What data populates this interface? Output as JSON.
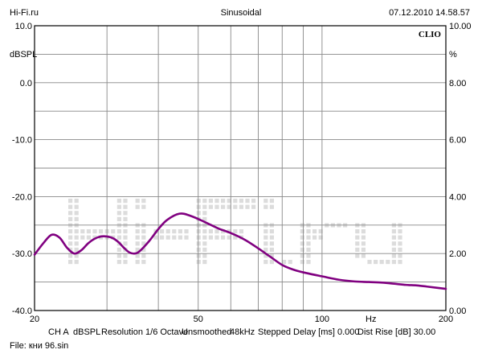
{
  "header": {
    "left": "Hi-Fi.ru",
    "center": "Sinusoidal",
    "right": "07.12.2010 14.58.57"
  },
  "chart_data": {
    "type": "line",
    "brand": "CLIO",
    "watermark": "Hi-Fi.ru",
    "x_scale": "log",
    "xlim": [
      20,
      200
    ],
    "ylim": [
      -40,
      10
    ],
    "grid": true,
    "x_ticks": [
      "20",
      "50",
      "100",
      "200"
    ],
    "x_unit": "Hz",
    "y_ticks_left": [
      "10.0",
      "0.0",
      "-10.0",
      "-20.0",
      "-30.0",
      "-40.0"
    ],
    "y_unit_left": "dBSPL",
    "y_ticks_right": [
      "10.00",
      "8.00",
      "6.00",
      "4.00",
      "2.00",
      "0.00"
    ],
    "y_unit_right": "%",
    "series": [
      {
        "color": "#800080",
        "x": [
          20,
          21,
          22,
          23,
          24,
          25,
          26,
          27,
          28,
          29,
          30,
          31,
          32,
          33,
          34,
          35,
          36,
          38,
          40,
          42,
          45,
          48,
          52,
          56,
          60,
          65,
          70,
          75,
          80,
          85,
          90,
          100,
          110,
          120,
          130,
          140,
          150,
          160,
          170,
          180,
          200
        ],
        "y": [
          -30.2,
          -28.2,
          -26.7,
          -27.2,
          -29.0,
          -30.0,
          -29.4,
          -28.2,
          -27.4,
          -27.0,
          -27.0,
          -27.3,
          -28.0,
          -29.0,
          -29.8,
          -30.0,
          -29.6,
          -27.8,
          -25.7,
          -24.1,
          -23.0,
          -23.4,
          -24.5,
          -25.6,
          -26.4,
          -27.6,
          -29.1,
          -30.6,
          -32.0,
          -32.8,
          -33.3,
          -34.0,
          -34.6,
          -34.9,
          -35.0,
          -35.1,
          -35.3,
          -35.5,
          -35.6,
          -35.8,
          -36.2
        ]
      }
    ]
  },
  "footer": {
    "channel": "CH A",
    "unit": "dBSPL",
    "resolution": "Resolution 1/6 Octave",
    "smoothing": "Unsmoothed",
    "rate": "48kHz",
    "mode": "Stepped",
    "delay": "Delay [ms] 0.000",
    "dist_rise": "Dist Rise [dB] 30.00",
    "file": "File: кни 96.sin"
  }
}
